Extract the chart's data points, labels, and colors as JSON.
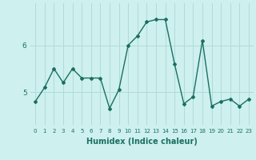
{
  "x": [
    0,
    1,
    2,
    3,
    4,
    5,
    6,
    7,
    8,
    9,
    10,
    11,
    12,
    13,
    14,
    15,
    16,
    17,
    18,
    19,
    20,
    21,
    22,
    23
  ],
  "y": [
    4.8,
    5.1,
    5.5,
    5.2,
    5.5,
    5.3,
    5.3,
    5.3,
    4.65,
    5.05,
    6.0,
    6.2,
    6.5,
    6.55,
    6.55,
    5.6,
    4.75,
    4.9,
    6.1,
    4.7,
    4.8,
    4.85,
    4.7,
    4.85
  ],
  "line_color": "#1a7060",
  "marker": "D",
  "marker_size": 2,
  "linewidth": 1.0,
  "xlabel": "Humidex (Indice chaleur)",
  "yticks": [
    5,
    6
  ],
  "ylim": [
    4.3,
    6.9
  ],
  "xlim": [
    -0.5,
    23.5
  ],
  "bg_color": "#cef0ef",
  "grid_color": "#b0dcd8",
  "xlabel_fontsize": 7,
  "tick_fontsize_x": 5,
  "tick_fontsize_y": 6.5
}
